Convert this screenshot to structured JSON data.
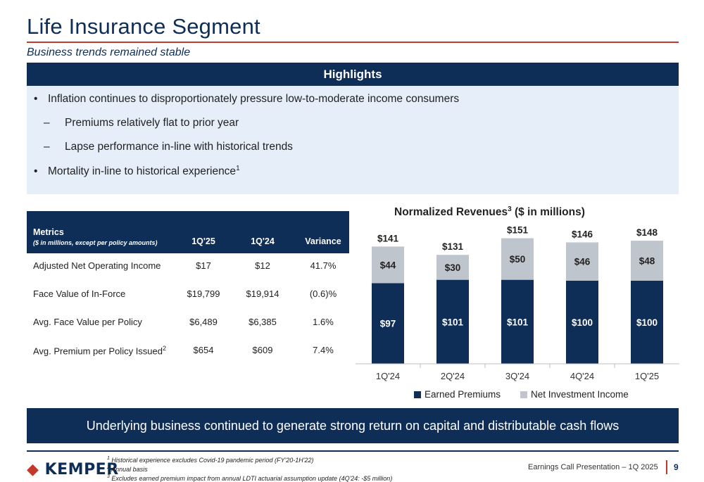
{
  "header": {
    "title": "Life Insurance Segment",
    "subtitle": "Business trends remained stable"
  },
  "highlights": {
    "heading": "Highlights",
    "items": [
      {
        "mark": "•",
        "text": "Inflation continues to disproportionately pressure low-to-moderate income consumers"
      },
      {
        "mark": "–",
        "text": "Premiums relatively flat to prior year"
      },
      {
        "mark": "–",
        "text": "Lapse performance in-line with historical trends"
      },
      {
        "mark": "•",
        "text": "Mortality in-line to historical experience",
        "sup": "1"
      }
    ]
  },
  "metrics": {
    "heading": "Metrics",
    "subheading": "($ in millions, except per policy amounts)",
    "columns": [
      "1Q'25",
      "1Q'24",
      "Variance"
    ],
    "rows": [
      {
        "name": "Adjusted Net Operating Income",
        "sup": "",
        "values": [
          "$17",
          "$12",
          "41.7%"
        ]
      },
      {
        "name": "Face Value of In-Force",
        "sup": "",
        "values": [
          "$19,799",
          "$19,914",
          "(0.6)%"
        ]
      },
      {
        "name": "Avg. Face Value per Policy",
        "sup": "",
        "values": [
          "$6,489",
          "$6,385",
          "1.6%"
        ]
      },
      {
        "name": "Avg. Premium per Policy Issued",
        "sup": "2",
        "values": [
          "$654",
          "$609",
          "7.4%"
        ]
      }
    ]
  },
  "chart_data": {
    "type": "bar",
    "stacked": true,
    "title": "Normalized Revenues",
    "title_sup": "3",
    "title_suffix": " ($ in millions)",
    "categories": [
      "1Q'24",
      "2Q'24",
      "3Q'24",
      "4Q'24",
      "1Q'25"
    ],
    "series": [
      {
        "name": "Earned Premiums",
        "color": "#0e2d57",
        "values": [
          97,
          101,
          101,
          100,
          100
        ],
        "labels": [
          "$97",
          "$101",
          "$101",
          "$100",
          "$100"
        ]
      },
      {
        "name": "Net Investment Income",
        "color": "#bfc5cc",
        "values": [
          44,
          30,
          50,
          46,
          48
        ],
        "labels": [
          "$44",
          "$30",
          "$50",
          "$46",
          "$48"
        ]
      }
    ],
    "totals": [
      141,
      131,
      151,
      146,
      148
    ],
    "total_labels": [
      "$141",
      "$131",
      "$151",
      "$146",
      "$148"
    ],
    "ylim": [
      0,
      165
    ],
    "legend": "bottom",
    "grid": false
  },
  "banner": "Underlying business continued to generate strong return on capital and distributable cash flows",
  "footer": {
    "logo": "KEMPER",
    "notes": [
      {
        "sup": "1",
        "text": " Historical experience excludes Covid-19 pandemic period (FY'20-1H'22)"
      },
      {
        "sup": "2",
        "text": " Annual basis"
      },
      {
        "sup": "3",
        "text": " Excludes earned premium impact from annual LDTI actuarial assumption update (4Q'24: -$5 million)"
      }
    ],
    "presentation": "Earnings Call Presentation – 1Q 2025",
    "page": "9"
  }
}
